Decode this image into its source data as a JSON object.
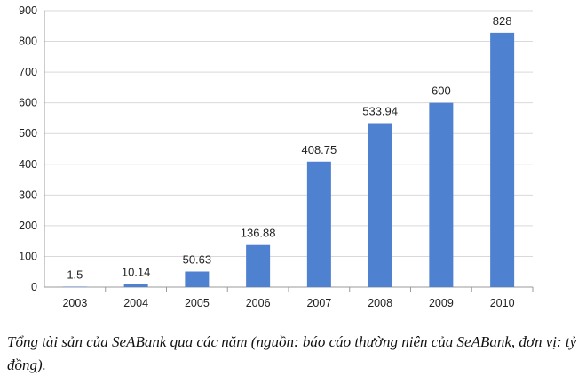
{
  "chart_data": {
    "type": "bar",
    "categories": [
      "2003",
      "2004",
      "2005",
      "2006",
      "2007",
      "2008",
      "2009",
      "2010"
    ],
    "values": [
      1.5,
      10.14,
      50.63,
      136.88,
      408.75,
      533.94,
      600,
      828
    ],
    "data_labels": [
      "1.5",
      "10.14",
      "50.63",
      "136.88",
      "408.75",
      "533.94",
      "600",
      "828"
    ],
    "y_ticks": [
      "0",
      "100",
      "200",
      "300",
      "400",
      "500",
      "600",
      "700",
      "800",
      "900"
    ],
    "ylim": [
      0,
      900
    ],
    "grid": true,
    "legend": "none",
    "bar_color": "#4f81d1",
    "grid_color": "#d9d9d9",
    "title": "",
    "xlabel": "",
    "ylabel": ""
  },
  "caption": "Tổng tài sản của SeABank qua các năm (nguồn: báo cáo thường niên của SeABank, đơn vị: tỷ đồng)."
}
